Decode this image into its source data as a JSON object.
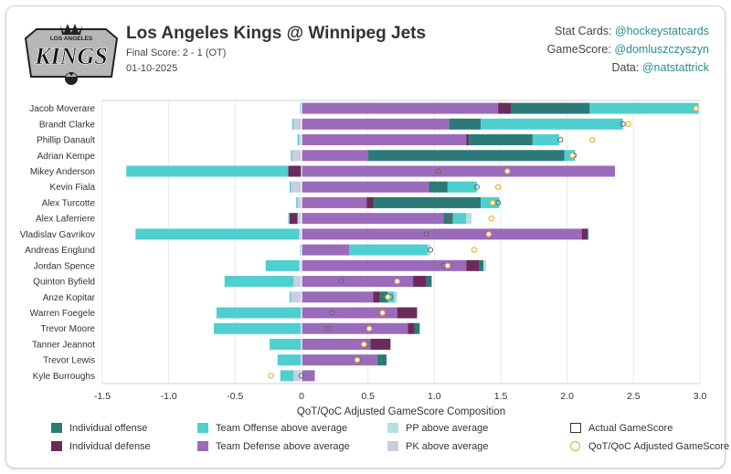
{
  "header": {
    "title": "Los Angeles Kings @ Winnipeg Jets",
    "subtitle": "Final Score: 2 - 1 (OT)",
    "date": "01-10-2025",
    "logo_text": "LOS ANGELES KINGS",
    "credits": [
      {
        "label": "Stat Cards:",
        "handle": "@hockeystatcards"
      },
      {
        "label": "GameScore:",
        "handle": "@domluszczyszyn"
      },
      {
        "label": "Data:",
        "handle": "@natstattrick"
      }
    ]
  },
  "colors": {
    "individual_offense": "#2b7a78",
    "individual_defense": "#6b2a5a",
    "team_offense": "#4fcfcf",
    "team_defense": "#9b6bbb",
    "pp": "#b4dfe3",
    "pk": "#c9cfe0",
    "actual_marker": "#6a6a6a",
    "qot_marker": "#e8b030"
  },
  "legend": [
    {
      "key": "individual_offense",
      "label": "Individual offense",
      "type": "fill"
    },
    {
      "key": "team_offense",
      "label": "Team Offense above average",
      "type": "fill"
    },
    {
      "key": "pp",
      "label": "PP above average",
      "type": "fill"
    },
    {
      "key": "actual",
      "label": "Actual GameScore",
      "type": "square"
    },
    {
      "key": "individual_defense",
      "label": "Individual defense",
      "type": "fill"
    },
    {
      "key": "team_defense",
      "label": "Team Defense above average",
      "type": "fill"
    },
    {
      "key": "pk",
      "label": "PK above average",
      "type": "fill"
    },
    {
      "key": "qot",
      "label": "QoT/QoC Adjusted GameScore",
      "type": "circle"
    }
  ],
  "chart_data": {
    "type": "bar",
    "orientation": "horizontal",
    "stacked": true,
    "xlabel": "QoT/QoC Adjusted GameScore Composition",
    "xlim": [
      -1.5,
      3.0
    ],
    "xticks": [
      -1.5,
      -1.0,
      -0.5,
      0.0,
      0.5,
      1.0,
      1.5,
      2.0,
      2.5,
      3.0
    ],
    "xtick_labels": [
      "-1.5",
      "-1.0",
      "-0.5",
      "0",
      "0.5",
      "1.0",
      "1.5",
      "2.0",
      "2.5",
      "3.0"
    ],
    "grid": true,
    "legend_position": "bottom",
    "categories": [
      "Jacob Moverare",
      "Brandt Clarke",
      "Phillip Danault",
      "Adrian Kempe",
      "Mikey Anderson",
      "Kevin Fiala",
      "Alex Turcotte",
      "Alex Laferriere",
      "Vladislav Gavrikov",
      "Andreas Englund",
      "Jordan Spence",
      "Quinton Byfield",
      "Anze Kopitar",
      "Warren Foegele",
      "Trevor Moore",
      "Tanner Jeannot",
      "Trevor Lewis",
      "Kyle Burroughs"
    ],
    "series": [
      {
        "name": "PK above average",
        "key": "pk",
        "values": [
          0.0,
          -0.06,
          -0.02,
          -0.07,
          0.0,
          -0.08,
          -0.03,
          -0.03,
          -0.02,
          0.0,
          -0.02,
          -0.06,
          -0.08,
          0.0,
          0.0,
          0.0,
          0.0,
          -0.06
        ]
      },
      {
        "name": "Team Defense above average",
        "key": "team_defense",
        "values": [
          1.48,
          1.11,
          1.24,
          0.5,
          2.36,
          0.96,
          0.49,
          1.07,
          2.11,
          0.36,
          1.24,
          0.84,
          0.54,
          0.72,
          0.8,
          0.52,
          0.57,
          0.1
        ]
      },
      {
        "name": "Individual defense",
        "key": "individual_defense",
        "values": [
          0.1,
          0.0,
          0.02,
          0.0,
          -0.1,
          0.0,
          0.05,
          -0.06,
          0.04,
          0.0,
          0.1,
          0.1,
          0.05,
          0.15,
          0.05,
          0.15,
          0.0,
          0.0
        ]
      },
      {
        "name": "Team Offense above average",
        "key": "team_offense",
        "values": [
          -0.01,
          -0.01,
          -0.01,
          -0.01,
          -1.22,
          -0.01,
          -0.01,
          -0.01,
          -1.23,
          -0.01,
          -0.25,
          -0.52,
          -0.01,
          -0.64,
          -0.66,
          -0.24,
          -0.18,
          -0.1
        ]
      },
      {
        "name": "Individual offense",
        "key": "individual_offense",
        "values": [
          0.59,
          0.24,
          0.48,
          1.48,
          0.0,
          0.14,
          0.81,
          0.07,
          0.01,
          0.0,
          0.03,
          0.04,
          0.06,
          0.0,
          0.04,
          0.0,
          0.07,
          0.0
        ]
      },
      {
        "name": "Team Offense above average (positive)",
        "key": "team_offense",
        "values": [
          0.82,
          1.07,
          0.2,
          0.08,
          0.0,
          0.22,
          0.14,
          0.1,
          0.0,
          0.59,
          0.0,
          0.0,
          0.05,
          0.0,
          0.0,
          0.0,
          0.0,
          0.0
        ]
      },
      {
        "name": "PP above average",
        "key": "pp",
        "values": [
          0.0,
          0.0,
          0.0,
          0.0,
          0.0,
          0.0,
          0.0,
          0.04,
          0.0,
          0.02,
          0.02,
          0.0,
          0.02,
          0.0,
          0.0,
          0.0,
          0.0,
          0.0
        ]
      }
    ],
    "actual_gamescore": [
      2.97,
      2.42,
      1.95,
      2.05,
      1.03,
      1.32,
      1.48,
      1.12,
      0.94,
      0.97,
      1.07,
      0.3,
      0.67,
      0.23,
      0.2,
      0.5,
      0.43,
      0.0
    ],
    "qot_adjusted_gamescore": [
      2.97,
      2.46,
      2.19,
      2.04,
      1.55,
      1.48,
      1.44,
      1.43,
      1.41,
      1.3,
      1.1,
      0.72,
      0.65,
      0.61,
      0.51,
      0.47,
      0.42,
      -0.23
    ]
  }
}
